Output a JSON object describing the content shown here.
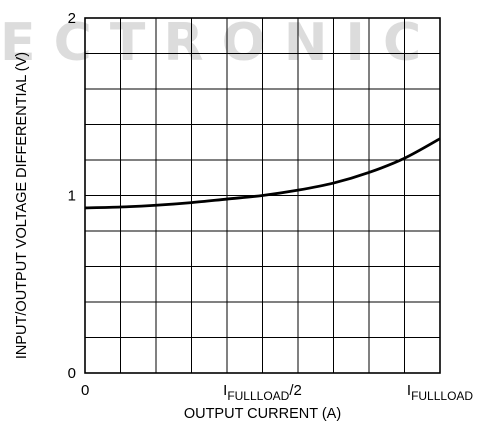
{
  "watermark": "E C T R O N I C",
  "chart_data": {
    "type": "line",
    "title": "",
    "xlabel": "OUTPUT CURRENT (A)",
    "ylabel": "INPUT/OUTPUT VOLTAGE DIFFERENTIAL (V)",
    "xlim": [
      0,
      1
    ],
    "ylim": [
      0,
      2
    ],
    "grid": true,
    "x_ticks": [
      {
        "value": 0,
        "label_main": "0",
        "label_sub": "",
        "label_tail": ""
      },
      {
        "value": 0.5,
        "label_main": "I",
        "label_sub": "FULLLOAD",
        "label_tail": "/2"
      },
      {
        "value": 1,
        "label_main": "I",
        "label_sub": "FULLLOAD",
        "label_tail": ""
      }
    ],
    "y_ticks": [
      {
        "value": 0,
        "label": "0"
      },
      {
        "value": 1,
        "label": "1"
      },
      {
        "value": 2,
        "label": "2"
      }
    ],
    "series": [
      {
        "x": [
          0,
          0.1,
          0.2,
          0.3,
          0.4,
          0.5,
          0.6,
          0.7,
          0.8,
          0.9,
          1.0
        ],
        "y": [
          0.93,
          0.935,
          0.945,
          0.96,
          0.98,
          1.0,
          1.03,
          1.07,
          1.13,
          1.21,
          1.32
        ]
      }
    ]
  }
}
